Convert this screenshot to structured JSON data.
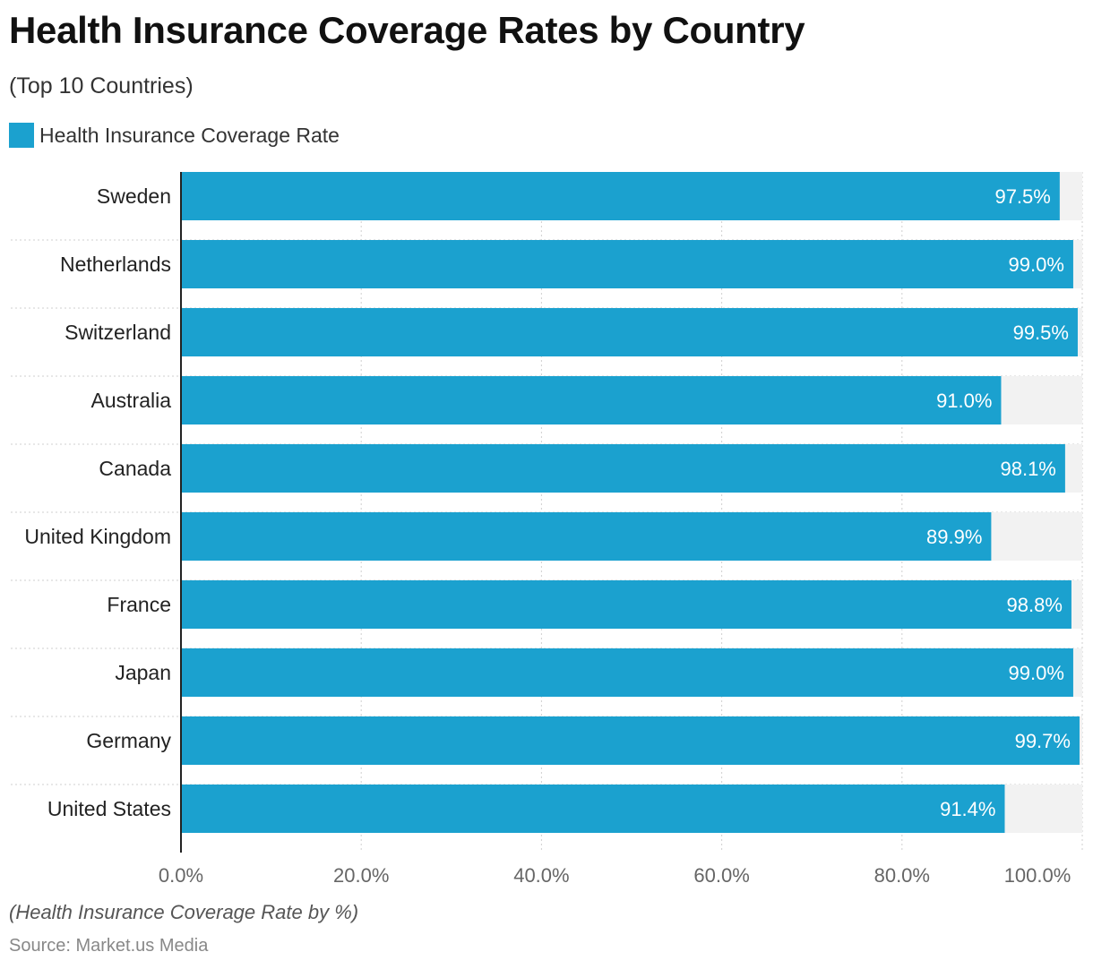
{
  "chart_data": {
    "type": "bar",
    "orientation": "horizontal",
    "title": "Health Insurance Coverage Rates by Country",
    "subtitle": "(Top 10 Countries)",
    "categories": [
      "Sweden",
      "Netherlands",
      "Switzerland",
      "Australia",
      "Canada",
      "United Kingdom",
      "France",
      "Japan",
      "Germany",
      "United States"
    ],
    "series": [
      {
        "name": "Health Insurance Coverage Rate",
        "values": [
          97.5,
          99.0,
          99.5,
          91.0,
          98.1,
          89.9,
          98.8,
          99.0,
          99.7,
          91.4
        ],
        "labels": [
          "97.5%",
          "99.0%",
          "99.5%",
          "91.0%",
          "98.1%",
          "89.9%",
          "98.8%",
          "99.0%",
          "99.7%",
          "91.4%"
        ]
      }
    ],
    "xlim": [
      0,
      100
    ],
    "xticks": [
      0,
      20,
      40,
      60,
      80,
      100
    ],
    "xtick_labels": [
      "0.0%",
      "20.0%",
      "40.0%",
      "60.0%",
      "80.0%",
      "100.0%"
    ],
    "grid": true,
    "legend_position": "top-left",
    "note": "(Health Insurance Coverage Rate by %)",
    "source": "Source: Market.us Media"
  },
  "colors": {
    "bar": "#1ba1cf",
    "track": "#f2f2f2",
    "bar_label": "#ffffff",
    "axis": "#222222",
    "grid": "#cfcfcf",
    "tick_label": "#666666",
    "category_label": "#222222"
  }
}
